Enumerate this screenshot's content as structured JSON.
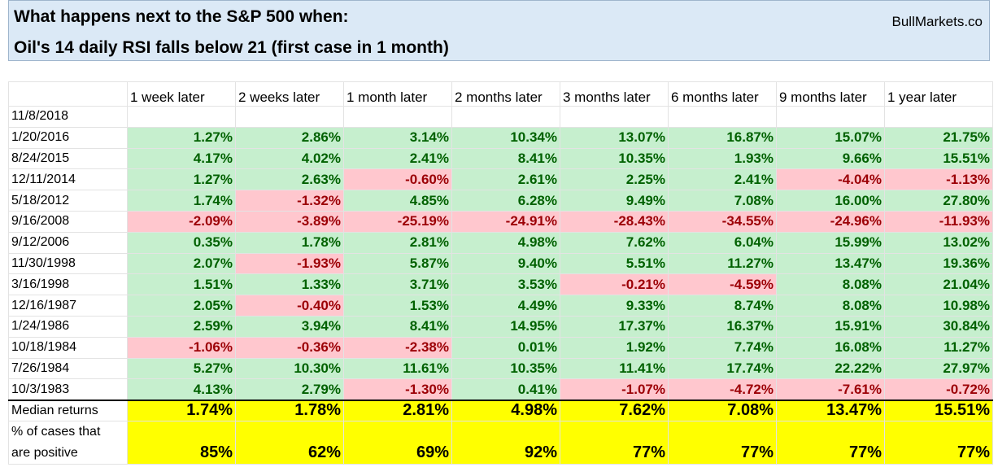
{
  "title": {
    "line1": "What happens next to the S&P 500 when:",
    "line2": "Oil's 14 daily RSI falls below 21 (first case in 1 month)",
    "brand": "BullMarkets.co"
  },
  "headers": [
    "1 week later",
    "2 weeks later",
    "1 month later",
    "2 months later",
    "3 months later",
    "6 months later",
    "9 months later",
    "1 year later"
  ],
  "rows": [
    {
      "date": "11/8/2018",
      "values": [
        "",
        "",
        "",
        "",
        "",
        "",
        "",
        ""
      ]
    },
    {
      "date": "1/20/2016",
      "values": [
        "1.27%",
        "2.86%",
        "3.14%",
        "10.34%",
        "13.07%",
        "16.87%",
        "15.07%",
        "21.75%"
      ]
    },
    {
      "date": "8/24/2015",
      "values": [
        "4.17%",
        "4.02%",
        "2.41%",
        "8.41%",
        "10.35%",
        "1.93%",
        "9.66%",
        "15.51%"
      ]
    },
    {
      "date": "12/11/2014",
      "values": [
        "1.27%",
        "2.63%",
        "-0.60%",
        "2.61%",
        "2.25%",
        "2.41%",
        "-4.04%",
        "-1.13%"
      ]
    },
    {
      "date": "5/18/2012",
      "values": [
        "1.74%",
        "-1.32%",
        "4.85%",
        "6.28%",
        "9.49%",
        "7.08%",
        "16.00%",
        "27.80%"
      ]
    },
    {
      "date": "9/16/2008",
      "values": [
        "-2.09%",
        "-3.89%",
        "-25.19%",
        "-24.91%",
        "-28.43%",
        "-34.55%",
        "-24.96%",
        "-11.93%"
      ]
    },
    {
      "date": "9/12/2006",
      "values": [
        "0.35%",
        "1.78%",
        "2.81%",
        "4.98%",
        "7.62%",
        "6.04%",
        "15.99%",
        "13.02%"
      ]
    },
    {
      "date": "11/30/1998",
      "values": [
        "2.07%",
        "-1.93%",
        "5.87%",
        "9.40%",
        "5.51%",
        "11.27%",
        "13.47%",
        "19.36%"
      ]
    },
    {
      "date": "3/16/1998",
      "values": [
        "1.51%",
        "1.33%",
        "3.71%",
        "3.53%",
        "-0.21%",
        "-4.59%",
        "8.08%",
        "21.04%"
      ]
    },
    {
      "date": "12/16/1987",
      "values": [
        "2.05%",
        "-0.40%",
        "1.53%",
        "4.49%",
        "9.33%",
        "8.74%",
        "8.08%",
        "10.98%"
      ]
    },
    {
      "date": "1/24/1986",
      "values": [
        "2.59%",
        "3.94%",
        "8.41%",
        "14.95%",
        "17.37%",
        "16.37%",
        "15.91%",
        "30.84%"
      ]
    },
    {
      "date": "10/18/1984",
      "values": [
        "-1.06%",
        "-0.36%",
        "-2.38%",
        "0.01%",
        "1.92%",
        "7.74%",
        "16.08%",
        "11.27%"
      ]
    },
    {
      "date": "7/26/1984",
      "values": [
        "5.27%",
        "10.30%",
        "11.61%",
        "10.35%",
        "11.41%",
        "17.74%",
        "22.22%",
        "27.97%"
      ]
    },
    {
      "date": "10/3/1983",
      "values": [
        "4.13%",
        "2.79%",
        "-1.30%",
        "0.41%",
        "-1.07%",
        "-4.72%",
        "-7.61%",
        "-0.72%"
      ]
    }
  ],
  "median": {
    "label": "Median returns",
    "values": [
      "1.74%",
      "1.78%",
      "2.81%",
      "4.98%",
      "7.62%",
      "7.08%",
      "13.47%",
      "15.51%"
    ]
  },
  "positive": {
    "label_line1": "% of cases that",
    "label_line2": "are positive",
    "values": [
      "85%",
      "62%",
      "69%",
      "92%",
      "77%",
      "77%",
      "77%",
      "77%"
    ]
  },
  "colors": {
    "title_bg": "#dbe9f6",
    "positive_fill": "#c6efce",
    "positive_text": "#006100",
    "negative_fill": "#ffc7ce",
    "negative_text": "#9c0006",
    "summary_fill": "#ffff00"
  }
}
